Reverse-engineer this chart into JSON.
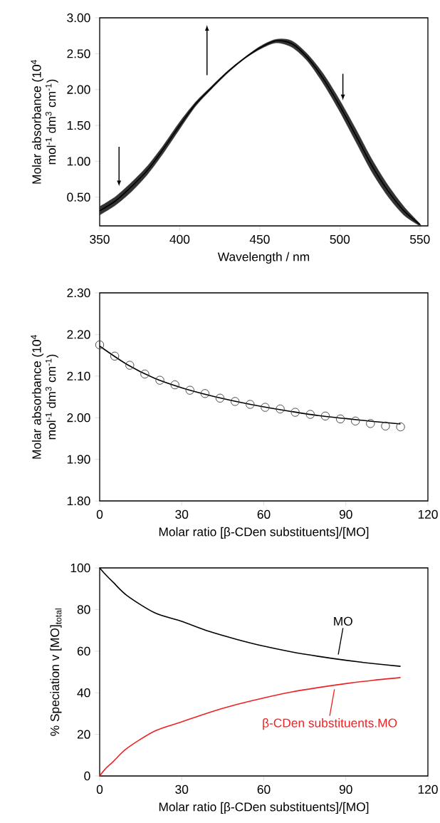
{
  "chart_data": [
    {
      "type": "line",
      "xlabel": "Wavelength / nm",
      "ylabel": "Molar absorbance (10$^{4}$ mol$^{-1}$ dm$^{3}$ cm$^{-1}$)",
      "xlim": [
        350,
        555
      ],
      "ylim": [
        0.1,
        3.0
      ],
      "xticks": [
        350,
        400,
        450,
        500,
        550
      ],
      "yticks": [
        {
          "value": 0.5,
          "label": "0.50"
        },
        {
          "value": 1.0,
          "label": "1.00"
        },
        {
          "value": 1.5,
          "label": "1.50"
        },
        {
          "value": 2.0,
          "label": "2.00"
        },
        {
          "value": 2.5,
          "label": "2.50"
        },
        {
          "value": 3.0,
          "label": "3.00"
        }
      ],
      "series": [
        {
          "color": "#000000",
          "x": [
            350,
            360,
            370,
            380,
            390,
            400,
            410,
            420,
            430,
            440,
            450,
            460,
            470,
            480,
            490,
            500,
            510,
            520,
            530,
            540,
            550
          ],
          "values": [
            0.31,
            0.45,
            0.65,
            0.88,
            1.18,
            1.5,
            1.8,
            2.03,
            2.25,
            2.43,
            2.58,
            2.68,
            2.64,
            2.44,
            2.14,
            1.77,
            1.36,
            0.94,
            0.59,
            0.31,
            0.12
          ],
          "lower": [
            0.25,
            0.39,
            0.58,
            0.82,
            1.12,
            1.45,
            1.77,
            2.01,
            2.23,
            2.42,
            2.56,
            2.65,
            2.59,
            2.39,
            2.07,
            1.69,
            1.27,
            0.85,
            0.51,
            0.25,
            0.1
          ],
          "upper": [
            0.37,
            0.51,
            0.71,
            0.94,
            1.23,
            1.55,
            1.83,
            2.05,
            2.26,
            2.44,
            2.6,
            2.7,
            2.68,
            2.49,
            2.21,
            1.85,
            1.45,
            1.03,
            0.67,
            0.37,
            0.13
          ]
        }
      ]
    },
    {
      "type": "scatter",
      "xlabel": "Molar ratio [β-CDen substituents]/[MO]",
      "ylabel": "Molar absorbance (10$^{4}$ mol$^{-1}$ dm$^{3}$ cm$^{-1}$)",
      "xlim": [
        0,
        120
      ],
      "ylim": [
        1.8,
        2.3
      ],
      "xticks": [
        0,
        30,
        60,
        90,
        120
      ],
      "yticks": [
        {
          "value": 1.8,
          "label": "1.80"
        },
        {
          "value": 1.9,
          "label": "1.90"
        },
        {
          "value": 2.0,
          "label": "2.00"
        },
        {
          "value": 2.1,
          "label": "2.10"
        },
        {
          "value": 2.2,
          "label": "2.20"
        },
        {
          "value": 2.3,
          "label": "2.30"
        }
      ],
      "series": [
        {
          "type": "scatter",
          "marker": "circle",
          "color": "#404040",
          "x": [
            0,
            5.5,
            11,
            16.5,
            22,
            27.5,
            33,
            38.5,
            44,
            49.5,
            55,
            60.5,
            66,
            71.5,
            77,
            82.5,
            88,
            93.5,
            99,
            104.5,
            110
          ],
          "values": [
            2.175,
            2.148,
            2.126,
            2.105,
            2.09,
            2.079,
            2.066,
            2.058,
            2.047,
            2.039,
            2.032,
            2.025,
            2.021,
            2.013,
            2.008,
            2.004,
            1.997,
            1.992,
            1.986,
            1.98,
            1.978
          ]
        },
        {
          "type": "line",
          "marker": "none",
          "color": "#000000",
          "x": [
            0,
            10,
            20,
            30,
            40,
            50,
            60,
            70,
            80,
            90,
            100,
            110
          ],
          "values": [
            2.172,
            2.128,
            2.095,
            2.072,
            2.054,
            2.039,
            2.026,
            2.015,
            2.005,
            1.998,
            1.991,
            1.985
          ]
        }
      ]
    },
    {
      "type": "line",
      "xlabel": "Molar ratio [β-CDen substituents]/[MO]",
      "ylabel": "% Speciation v [MO]$_{total}$",
      "xlim": [
        0,
        120
      ],
      "ylim": [
        0,
        100
      ],
      "xticks": [
        0,
        30,
        60,
        90,
        120
      ],
      "yticks": [
        0,
        20,
        40,
        60,
        80,
        100
      ],
      "series": [
        {
          "name": "MO",
          "color": "#000000",
          "x": [
            0,
            2,
            5,
            10,
            20,
            30,
            40,
            50,
            60,
            70,
            80,
            90,
            100,
            110
          ],
          "values": [
            100,
            97,
            93,
            86.7,
            78.5,
            74.3,
            69.5,
            65.7,
            62.4,
            59.7,
            57.5,
            55.6,
            54,
            52.7
          ]
        },
        {
          "name": "β-CDen substituents.MO",
          "color": "#ee2222",
          "x": [
            0,
            2,
            5,
            10,
            20,
            30,
            40,
            50,
            60,
            70,
            80,
            90,
            100,
            110
          ],
          "values": [
            0,
            3.3,
            7,
            13.3,
            21.5,
            26,
            30.5,
            34.3,
            37.5,
            40.3,
            42.5,
            44.4,
            46,
            47.3
          ]
        }
      ]
    }
  ]
}
